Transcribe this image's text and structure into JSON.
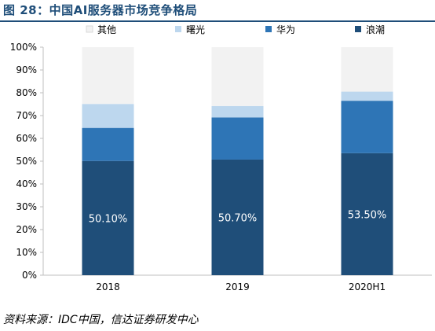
{
  "header": {
    "title": "图 28：中国AI服务器市场竞争格局"
  },
  "footer": {
    "source": "资料来源：IDC中国，信达证券研发中心"
  },
  "colors": {
    "rule": "#1f4e79",
    "axis": "#bfbfbf"
  },
  "chart_data": {
    "type": "bar",
    "stacked": true,
    "categories": [
      "2018",
      "2019",
      "2020H1"
    ],
    "y_ticks": [
      "0%",
      "10%",
      "20%",
      "30%",
      "40%",
      "50%",
      "60%",
      "70%",
      "80%",
      "90%",
      "100%"
    ],
    "ylim": [
      0,
      100
    ],
    "legend_position": "top",
    "series": [
      {
        "name": "浪潮",
        "color": "#1f4e79",
        "values": [
          50.1,
          50.7,
          53.5
        ],
        "labels": [
          "50.10%",
          "50.70%",
          "53.50%"
        ]
      },
      {
        "name": "华为",
        "color": "#2e75b6",
        "values": [
          14.5,
          18.5,
          23.0
        ]
      },
      {
        "name": "曙光",
        "color": "#bdd7ee",
        "values": [
          10.5,
          5.0,
          4.0
        ]
      },
      {
        "name": "其他",
        "color": "#f2f2f2",
        "values": [
          24.9,
          25.8,
          19.5
        ]
      }
    ]
  }
}
